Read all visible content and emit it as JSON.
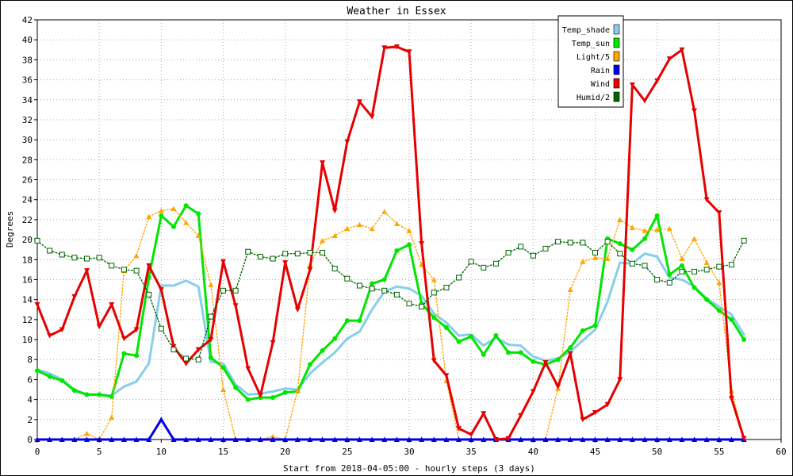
{
  "chart_data": {
    "type": "line",
    "title": "Weather in Essex",
    "xlabel": "Start from 2018-04-05:00 - hourly steps (3 days)",
    "ylabel": "Degrees",
    "xlim": [
      0,
      60
    ],
    "ylim": [
      0,
      42
    ],
    "xticks": [
      0,
      5,
      10,
      15,
      20,
      25,
      30,
      35,
      40,
      45,
      50,
      55,
      60
    ],
    "yticks": [
      0,
      2,
      4,
      6,
      8,
      10,
      12,
      14,
      16,
      18,
      20,
      22,
      24,
      26,
      28,
      30,
      32,
      34,
      36,
      38,
      40,
      42
    ],
    "grid": true,
    "legend_position": "top-right",
    "x": [
      0,
      1,
      2,
      3,
      4,
      5,
      6,
      7,
      8,
      9,
      10,
      11,
      12,
      13,
      14,
      15,
      16,
      17,
      18,
      19,
      20,
      21,
      22,
      23,
      24,
      25,
      26,
      27,
      28,
      29,
      30,
      31,
      32,
      33,
      34,
      35,
      36,
      37,
      38,
      39,
      40,
      41,
      42,
      43,
      44,
      45,
      46,
      47,
      48,
      49,
      50,
      51,
      52,
      53,
      54,
      55,
      56,
      57
    ],
    "series": [
      {
        "name": "Temp_shade",
        "color": "#87ceeb",
        "style": "solid",
        "marker": "none",
        "values": [
          7.0,
          6.6,
          6.0,
          5.0,
          4.5,
          4.5,
          4.4,
          5.3,
          5.8,
          7.6,
          15.4,
          15.4,
          15.9,
          15.3,
          7.8,
          7.6,
          5.5,
          4.5,
          4.6,
          4.8,
          5.1,
          5.0,
          6.6,
          7.7,
          8.7,
          10.1,
          10.8,
          13.0,
          14.8,
          15.3,
          15.1,
          14.4,
          12.6,
          11.7,
          10.4,
          10.5,
          9.4,
          10.2,
          9.5,
          9.4,
          8.3,
          7.9,
          8.1,
          8.8,
          9.9,
          11.0,
          13.8,
          17.7,
          17.6,
          18.6,
          18.3,
          16.2,
          16.0,
          15.3,
          14.1,
          13.3,
          12.5,
          10.5
        ]
      },
      {
        "name": "Temp_sun",
        "color": "#00e600",
        "style": "solid",
        "marker": "circle",
        "values": [
          6.9,
          6.3,
          5.9,
          4.9,
          4.5,
          4.5,
          4.3,
          8.6,
          8.4,
          16.2,
          22.4,
          21.3,
          23.4,
          22.6,
          8.2,
          7.2,
          5.2,
          4.0,
          4.2,
          4.2,
          4.7,
          4.8,
          7.5,
          8.9,
          10.1,
          11.9,
          11.9,
          15.6,
          16.0,
          18.9,
          19.5,
          13.6,
          12.2,
          11.2,
          9.8,
          10.3,
          8.5,
          10.4,
          8.7,
          8.7,
          7.8,
          7.5,
          8.0,
          9.2,
          10.9,
          11.4,
          20.1,
          19.6,
          19.0,
          20.1,
          22.4,
          16.5,
          17.4,
          15.2,
          14.0,
          12.9,
          12.0,
          10.0
        ]
      },
      {
        "name": "Light/5",
        "color": "#ffa500",
        "style": "dotted",
        "marker": "triangle-up",
        "values": [
          0,
          0,
          0,
          0,
          0.6,
          0,
          2.2,
          16.9,
          18.4,
          22.3,
          22.9,
          23.1,
          21.7,
          20.4,
          15.5,
          5.0,
          0,
          0,
          0,
          0.3,
          0,
          4.9,
          17.5,
          19.9,
          20.4,
          21.1,
          21.5,
          21.1,
          22.8,
          21.6,
          20.9,
          17.5,
          16.0,
          5.9,
          0,
          0,
          0,
          0,
          0,
          0,
          0,
          0,
          5.1,
          15.0,
          17.8,
          18.2,
          18.1,
          22.0,
          21.2,
          20.9,
          21.0,
          21.1,
          18.1,
          20.1,
          17.7,
          15.7,
          4.9,
          0
        ]
      },
      {
        "name": "Rain",
        "color": "#0000e6",
        "style": "solid",
        "marker": "triangle-up",
        "values": [
          0,
          0,
          0,
          0,
          0,
          0,
          0,
          0,
          0,
          0,
          2.0,
          0,
          0,
          0,
          0,
          0,
          0,
          0,
          0,
          0,
          0,
          0,
          0,
          0,
          0,
          0,
          0,
          0,
          0,
          0,
          0,
          0,
          0,
          0,
          0,
          0,
          0,
          0,
          0,
          0,
          0,
          0,
          0,
          0,
          0,
          0,
          0,
          0,
          0,
          0,
          0,
          0,
          0,
          0,
          0,
          0,
          0,
          0
        ]
      },
      {
        "name": "Wind",
        "color": "#e60000",
        "style": "solid",
        "marker": "triangle-down",
        "values": [
          13.5,
          10.4,
          11.0,
          14.3,
          16.9,
          11.3,
          13.5,
          10.1,
          11.0,
          17.4,
          15.0,
          9.3,
          7.6,
          9.0,
          10.0,
          17.8,
          13.4,
          7.1,
          4.4,
          9.7,
          17.7,
          13.0,
          17.0,
          27.7,
          22.9,
          29.8,
          33.8,
          32.3,
          39.2,
          39.3,
          38.8,
          19.6,
          7.9,
          6.4,
          1.1,
          0.5,
          2.6,
          0,
          0.1,
          2.4,
          4.8,
          7.7,
          5.3,
          8.6,
          2.0,
          2.7,
          3.5,
          6.0,
          35.5,
          33.9,
          35.9,
          38.1,
          39.0,
          32.9,
          24.0,
          22.7,
          4.1,
          0.1
        ]
      },
      {
        "name": "Humid/2",
        "color": "#006400",
        "style": "dotted",
        "marker": "square",
        "values": [
          19.9,
          18.9,
          18.5,
          18.2,
          18.1,
          18.2,
          17.4,
          17.0,
          16.9,
          14.5,
          11.1,
          9.0,
          8.1,
          8.0,
          12.3,
          14.9,
          14.9,
          18.8,
          18.3,
          18.1,
          18.6,
          18.6,
          18.7,
          18.7,
          17.1,
          16.1,
          15.4,
          15.1,
          14.9,
          14.5,
          13.6,
          13.3,
          14.7,
          15.2,
          16.2,
          17.8,
          17.2,
          17.6,
          18.7,
          19.3,
          18.4,
          19.1,
          19.8,
          19.7,
          19.7,
          18.7,
          19.8,
          18.6,
          17.6,
          17.4,
          16.0,
          15.7,
          16.8,
          16.8,
          17.0,
          17.3,
          17.5,
          19.9
        ]
      }
    ]
  }
}
